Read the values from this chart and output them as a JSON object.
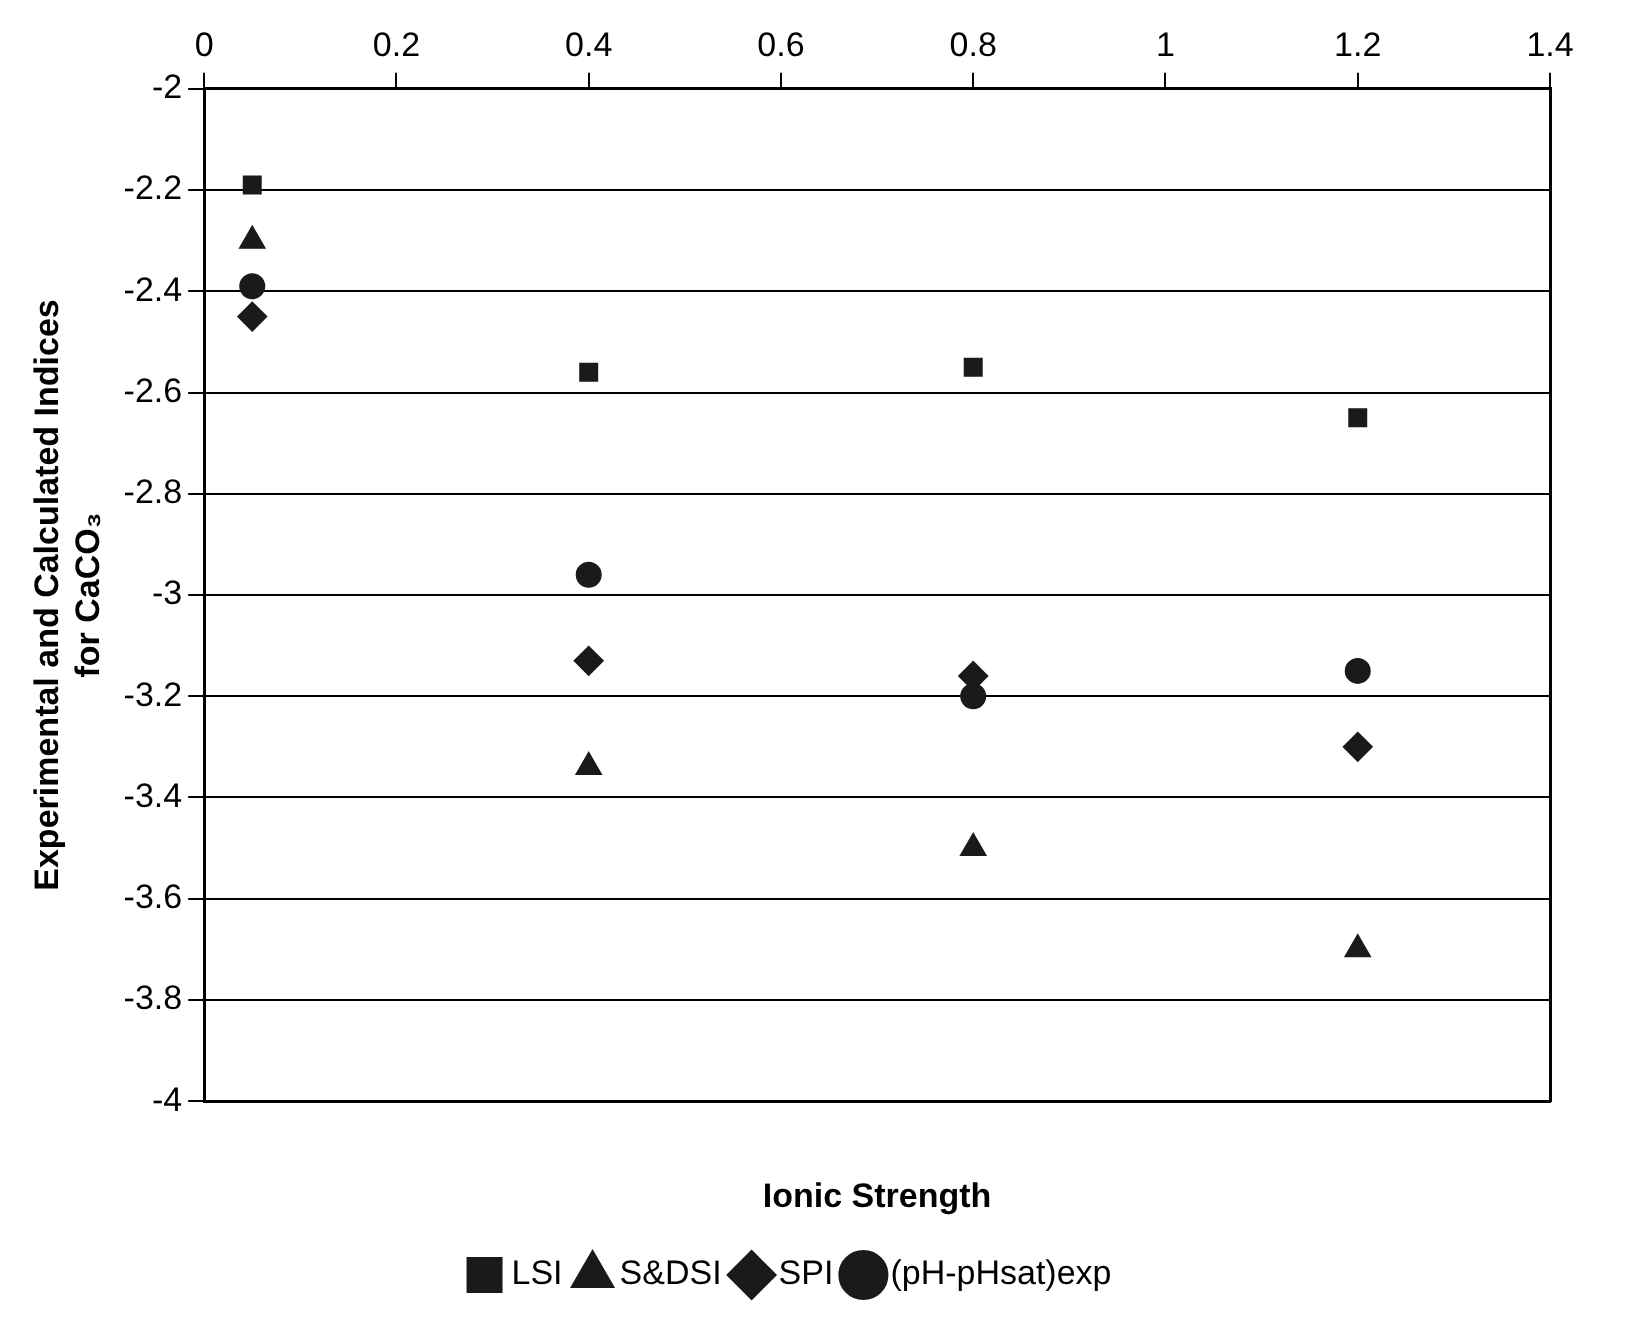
{
  "chart_data": {
    "type": "scatter",
    "xlabel": "Ionic Strength",
    "ylabel": "Experimental and Calculated Indices for CaCO₃",
    "x": [
      0.05,
      0.4,
      0.8,
      1.2
    ],
    "series": [
      {
        "name": "LSI",
        "color": "#1a1a1a",
        "marker": "square",
        "values": [
          -2.19,
          -2.56,
          -2.55,
          -2.65
        ]
      },
      {
        "name": "S&DSI",
        "color": "#1a1a1a",
        "marker": "triangle",
        "values": [
          -2.3,
          -3.34,
          -3.5,
          -3.7
        ]
      },
      {
        "name": "SPI",
        "color": "#1a1a1a",
        "marker": "diamond",
        "values": [
          -2.45,
          -3.13,
          -3.16,
          -3.3
        ]
      },
      {
        "name": "(pH-pHsat)exp",
        "color": "#1a1a1a",
        "marker": "circle",
        "values": [
          -2.39,
          -2.96,
          -3.2,
          -3.15
        ]
      }
    ],
    "xlim": [
      0,
      1.4
    ],
    "xticks": [
      0,
      0.2,
      0.4,
      0.6,
      0.8,
      1,
      1.2,
      1.4
    ],
    "ylim": [
      -4,
      -2
    ],
    "yticks": [
      -4,
      -3.8,
      -3.6,
      -3.4,
      -3.2,
      -3,
      -2.8,
      -2.6,
      -2.4,
      -2.2,
      -2
    ],
    "grid": "y",
    "legend": "bottom"
  }
}
